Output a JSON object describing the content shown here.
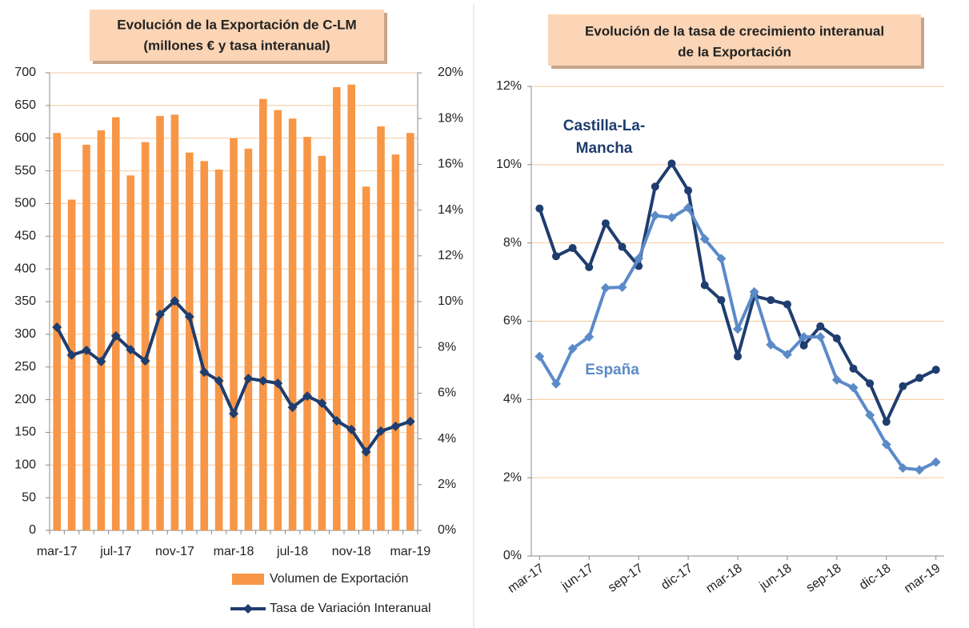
{
  "chart_data": [
    {
      "type": "bar_line",
      "title": [
        "Evolución de la Exportación de C-LM",
        "(millones € y tasa interanual)"
      ],
      "categories": [
        "mar-17",
        null,
        null,
        null,
        "jul-17",
        null,
        null,
        null,
        "nov-17",
        null,
        null,
        null,
        "mar-18",
        null,
        null,
        null,
        "jul-18",
        null,
        null,
        null,
        "nov-18",
        null,
        null,
        null,
        "mar-19"
      ],
      "series": [
        {
          "name": "Volumen de Exportación",
          "type": "bar",
          "color": "#f79646",
          "values": [
            608,
            506,
            590,
            612,
            632,
            543,
            594,
            634,
            636,
            578,
            565,
            552,
            600,
            584,
            660,
            643,
            630,
            602,
            573,
            678,
            682,
            526,
            618,
            575,
            608
          ]
        },
        {
          "name": "Tasa de Variación Interanual",
          "type": "line",
          "axis": "y2",
          "color": "#1f3d6e",
          "values": [
            8.88,
            7.66,
            7.87,
            7.38,
            8.5,
            7.9,
            7.41,
            9.44,
            10.03,
            9.34,
            6.92,
            6.54,
            5.1,
            6.64,
            6.54,
            6.43,
            5.38,
            5.87,
            5.56,
            4.79,
            4.41,
            3.43,
            4.34,
            4.55,
            4.76
          ]
        }
      ],
      "ylim": [
        0,
        700
      ],
      "yticks": [
        0,
        50,
        100,
        150,
        200,
        250,
        300,
        350,
        400,
        450,
        500,
        550,
        600,
        650,
        700
      ],
      "y2lim": [
        0,
        20
      ],
      "y2ticks": [
        {
          "value": 0,
          "label": "0%"
        },
        {
          "value": 2,
          "label": "2%"
        },
        {
          "value": 4,
          "label": "4%"
        },
        {
          "value": 6,
          "label": "6%"
        },
        {
          "value": 8,
          "label": "8%"
        },
        {
          "value": 10,
          "label": "10%"
        },
        {
          "value": 12,
          "label": "12%"
        },
        {
          "value": 14,
          "label": "14%"
        },
        {
          "value": 16,
          "label": "16%"
        },
        {
          "value": 18,
          "label": "18%"
        },
        {
          "value": 20,
          "label": "20%"
        }
      ],
      "grid": true,
      "legend": "bottom"
    },
    {
      "type": "line",
      "title": [
        "Evolución de la tasa de crecimiento interanual",
        "de la Exportación"
      ],
      "categories": [
        "mar-17",
        null,
        null,
        "jun-17",
        null,
        null,
        "sep-17",
        null,
        null,
        "dic-17",
        null,
        null,
        "mar-18",
        null,
        null,
        "jun-18",
        null,
        null,
        "sep-18",
        null,
        null,
        "dic-18",
        null,
        null,
        "mar-19"
      ],
      "series": [
        {
          "name": [
            "Castilla-La-",
            "Mancha"
          ],
          "color": "#1f3d6e",
          "marker": "circle",
          "values": [
            8.88,
            7.66,
            7.87,
            7.38,
            8.5,
            7.9,
            7.41,
            9.44,
            10.03,
            9.34,
            6.92,
            6.54,
            5.1,
            6.64,
            6.54,
            6.43,
            5.38,
            5.87,
            5.56,
            4.79,
            4.41,
            3.43,
            4.34,
            4.55,
            4.76
          ]
        },
        {
          "name": [
            "España"
          ],
          "color": "#5b8ac8",
          "marker": "diamond",
          "values": [
            5.1,
            4.4,
            5.3,
            5.6,
            6.85,
            6.87,
            7.6,
            8.7,
            8.65,
            8.9,
            8.1,
            7.6,
            5.8,
            6.75,
            5.4,
            5.15,
            5.6,
            5.6,
            4.5,
            4.3,
            3.6,
            2.85,
            2.25,
            2.2,
            2.4
          ]
        }
      ],
      "ylim": [
        0,
        12
      ],
      "yticks": [
        {
          "value": 0,
          "label": "0%"
        },
        {
          "value": 2,
          "label": "2%"
        },
        {
          "value": 4,
          "label": "4%"
        },
        {
          "value": 6,
          "label": "6%"
        },
        {
          "value": 8,
          "label": "8%"
        },
        {
          "value": 10,
          "label": "10%"
        },
        {
          "value": 12,
          "label": "12%"
        }
      ],
      "grid": true
    }
  ]
}
